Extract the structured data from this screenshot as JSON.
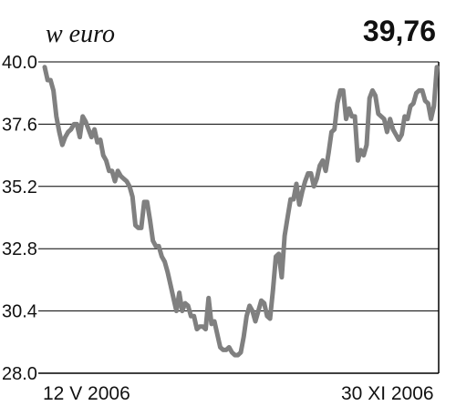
{
  "header": {
    "unit_label": "w euro",
    "last_value": "39,76"
  },
  "chart_data": {
    "type": "line",
    "title": "",
    "xlabel": "",
    "ylabel": "w euro",
    "ylim": [
      28.0,
      40.0
    ],
    "yticks": [
      "28.0",
      "30.4",
      "32.8",
      "35.2",
      "37.6",
      "40.0"
    ],
    "x_start_label": "12 V 2006",
    "x_end_label": "30 XI 2006",
    "grid": true,
    "line_color": "#808080",
    "series": [
      {
        "values": [
          39.8,
          39.3,
          39.3,
          38.9,
          37.9,
          37.3,
          36.8,
          37.1,
          37.3,
          37.4,
          37.6,
          37.6,
          37.1,
          37.9,
          37.7,
          37.4,
          37.1,
          37.4,
          36.9,
          37.0,
          36.4,
          36.2,
          35.8,
          35.8,
          35.4,
          35.8,
          35.6,
          35.5,
          35.4,
          35.2,
          34.8,
          33.7,
          33.6,
          33.6,
          34.6,
          34.6,
          33.9,
          33.1,
          32.9,
          32.9,
          32.5,
          32.3,
          31.9,
          31.4,
          30.9,
          30.4,
          31.1,
          30.4,
          30.7,
          30.6,
          30.2,
          30.2,
          29.7,
          29.8,
          29.8,
          29.7,
          30.9,
          29.9,
          30.0,
          29.5,
          29.0,
          28.9,
          28.9,
          29.0,
          28.8,
          28.7,
          28.7,
          28.8,
          29.4,
          30.2,
          30.6,
          30.4,
          30.0,
          30.4,
          30.8,
          30.7,
          30.2,
          30.1,
          31.2,
          32.5,
          32.6,
          31.7,
          33.3,
          34.0,
          34.7,
          34.7,
          35.3,
          34.5,
          35.0,
          35.4,
          35.7,
          35.7,
          35.2,
          35.5,
          36.0,
          36.2,
          35.8,
          36.5,
          37.3,
          37.4,
          38.4,
          38.9,
          38.9,
          37.8,
          38.2,
          37.9,
          37.9,
          36.2,
          36.6,
          36.4,
          36.8,
          38.6,
          38.9,
          38.7,
          38.0,
          37.9,
          37.8,
          37.3,
          37.8,
          37.4,
          37.2,
          37.0,
          37.2,
          37.9,
          37.8,
          38.3,
          38.4,
          38.8,
          38.9,
          38.9,
          38.5,
          38.4,
          37.8,
          38.3,
          39.8
        ]
      }
    ]
  }
}
